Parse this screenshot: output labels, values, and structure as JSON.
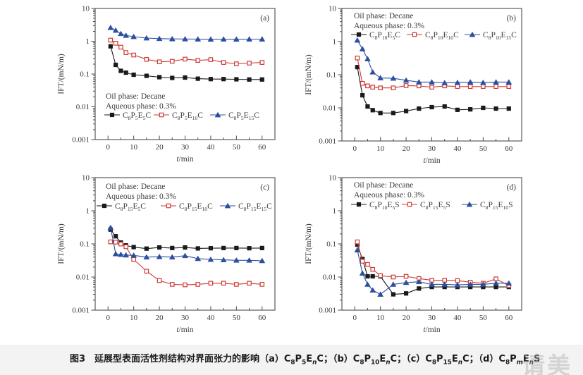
{
  "page": {
    "background": "#ffffff",
    "caption_bar_color": "#f3f3f3"
  },
  "colors": {
    "axis": "#4a4a4a",
    "text": "#3a3a3a",
    "black_series": "#1a1a1a",
    "red_series": "#cd3a35",
    "blue_series": "#2c4f9e"
  },
  "axes_common": {
    "ylabel": "IFT/(mN/m)",
    "xlabel_segments": [
      [
        "t",
        "i"
      ],
      [
        "/min",
        ""
      ]
    ],
    "x_ticks": [
      0,
      10,
      20,
      30,
      40,
      50,
      60
    ],
    "x_minor_ticks": [
      5,
      15,
      25,
      35,
      45,
      55
    ],
    "x_range": [
      -5,
      65
    ],
    "y_scale": "log",
    "y_range": [
      0.001,
      10
    ],
    "y_tick_labels": [
      "10",
      "1",
      "0.1",
      "0.01",
      "0.001"
    ],
    "y_tick_values": [
      10,
      1,
      0.1,
      0.01,
      0.001
    ],
    "note_lines": [
      "Oil phase: Decane",
      "Aqueous phase: 0.3%"
    ]
  },
  "chart_data": [
    {
      "type": "line",
      "panel": "a",
      "panel_letter": "(a)",
      "x": [
        1,
        3,
        5,
        7,
        10,
        15,
        20,
        25,
        30,
        35,
        40,
        45,
        50,
        55,
        60
      ],
      "series": [
        {
          "name": "C8P5E5C",
          "label": [
            [
              "C",
              ""
            ],
            [
              "8",
              "s"
            ],
            [
              "P",
              ""
            ],
            [
              "5",
              "s"
            ],
            [
              "E",
              ""
            ],
            [
              "5",
              "s"
            ],
            [
              "C",
              ""
            ]
          ],
          "color": "#1a1a1a",
          "marker": "square-filled",
          "values": [
            0.7,
            0.19,
            0.125,
            0.11,
            0.095,
            0.088,
            0.08,
            0.076,
            0.078,
            0.072,
            0.07,
            0.07,
            0.069,
            0.068,
            0.068
          ]
        },
        {
          "name": "C8P5E10C",
          "label": [
            [
              "C",
              ""
            ],
            [
              "8",
              "s"
            ],
            [
              "P",
              ""
            ],
            [
              "5",
              "s"
            ],
            [
              "E",
              ""
            ],
            [
              "10",
              "s"
            ],
            [
              "C",
              ""
            ]
          ],
          "color": "#cd3a35",
          "marker": "square-open",
          "values": [
            1.08,
            0.87,
            0.66,
            0.45,
            0.38,
            0.28,
            0.235,
            0.245,
            0.285,
            0.26,
            0.275,
            0.225,
            0.205,
            0.215,
            0.225
          ]
        },
        {
          "name": "C8P5E15C",
          "label": [
            [
              "C",
              ""
            ],
            [
              "8",
              "s"
            ],
            [
              "P",
              ""
            ],
            [
              "5",
              "s"
            ],
            [
              "E",
              ""
            ],
            [
              "15",
              "s"
            ],
            [
              "C",
              ""
            ]
          ],
          "color": "#2c4f9e",
          "marker": "triangle-filled",
          "values": [
            2.6,
            2.15,
            1.7,
            1.5,
            1.38,
            1.25,
            1.2,
            1.18,
            1.17,
            1.16,
            1.15,
            1.16,
            1.15,
            1.16,
            1.16
          ]
        }
      ]
    },
    {
      "type": "line",
      "panel": "b",
      "panel_letter": "(b)",
      "x": [
        1,
        3,
        5,
        7,
        10,
        15,
        20,
        25,
        30,
        35,
        40,
        45,
        50,
        55,
        60
      ],
      "series": [
        {
          "name": "C8P10E5C",
          "label": [
            [
              "C",
              ""
            ],
            [
              "8",
              "s"
            ],
            [
              "P",
              ""
            ],
            [
              "10",
              "s"
            ],
            [
              "E",
              ""
            ],
            [
              "5",
              "s"
            ],
            [
              "C",
              ""
            ]
          ],
          "color": "#1a1a1a",
          "marker": "square-filled",
          "values": [
            0.17,
            0.024,
            0.011,
            0.0085,
            0.007,
            0.007,
            0.008,
            0.0095,
            0.0105,
            0.011,
            0.0087,
            0.009,
            0.01,
            0.0095,
            0.0095
          ]
        },
        {
          "name": "C8P10E10C",
          "label": [
            [
              "C",
              ""
            ],
            [
              "8",
              "s"
            ],
            [
              "P",
              ""
            ],
            [
              "10",
              "s"
            ],
            [
              "E",
              ""
            ],
            [
              "10",
              "s"
            ],
            [
              "C",
              ""
            ]
          ],
          "color": "#cd3a35",
          "marker": "square-open",
          "values": [
            0.32,
            0.055,
            0.046,
            0.042,
            0.04,
            0.04,
            0.047,
            0.046,
            0.042,
            0.046,
            0.044,
            0.044,
            0.044,
            0.044,
            0.044
          ]
        },
        {
          "name": "C8P10E15C",
          "label": [
            [
              "C",
              ""
            ],
            [
              "8",
              "s"
            ],
            [
              "P",
              ""
            ],
            [
              "10",
              "s"
            ],
            [
              "E",
              ""
            ],
            [
              "15",
              "s"
            ],
            [
              "C",
              ""
            ]
          ],
          "color": "#2c4f9e",
          "marker": "triangle-filled",
          "values": [
            1.1,
            0.6,
            0.3,
            0.12,
            0.08,
            0.078,
            0.068,
            0.06,
            0.06,
            0.057,
            0.058,
            0.06,
            0.058,
            0.06,
            0.06
          ]
        }
      ]
    },
    {
      "type": "line",
      "panel": "c",
      "panel_letter": "(c)",
      "x": [
        1,
        3,
        5,
        7,
        10,
        15,
        20,
        25,
        30,
        35,
        40,
        45,
        50,
        55,
        60
      ],
      "series": [
        {
          "name": "C8P15E5C",
          "label": [
            [
              "C",
              ""
            ],
            [
              "8",
              "s"
            ],
            [
              "P",
              ""
            ],
            [
              "15",
              "s"
            ],
            [
              "E",
              ""
            ],
            [
              "5",
              "s"
            ],
            [
              "C",
              ""
            ]
          ],
          "color": "#1a1a1a",
          "marker": "square-filled",
          "values": [
            0.27,
            0.17,
            0.11,
            0.09,
            0.08,
            0.072,
            0.078,
            0.075,
            0.078,
            0.073,
            0.074,
            0.075,
            0.075,
            0.074,
            0.075
          ]
        },
        {
          "name": "C8P15E10C",
          "label": [
            [
              "C",
              ""
            ],
            [
              "8",
              "s"
            ],
            [
              "P",
              ""
            ],
            [
              "15",
              "s"
            ],
            [
              "E",
              ""
            ],
            [
              "10",
              "s"
            ],
            [
              "C",
              ""
            ]
          ],
          "color": "#cd3a35",
          "marker": "square-open",
          "values": [
            0.115,
            0.113,
            0.099,
            0.082,
            0.034,
            0.015,
            0.0078,
            0.006,
            0.0058,
            0.006,
            0.0065,
            0.0065,
            0.006,
            0.0065,
            0.006
          ]
        },
        {
          "name": "C8P15E15C",
          "label": [
            [
              "C",
              ""
            ],
            [
              "8",
              "s"
            ],
            [
              "P",
              ""
            ],
            [
              "15",
              "s"
            ],
            [
              "E",
              ""
            ],
            [
              "15",
              "s"
            ],
            [
              "C",
              ""
            ]
          ],
          "color": "#2c4f9e",
          "marker": "triangle-filled",
          "values": [
            0.31,
            0.05,
            0.048,
            0.046,
            0.045,
            0.04,
            0.041,
            0.04,
            0.044,
            0.036,
            0.034,
            0.033,
            0.032,
            0.032,
            0.031
          ]
        }
      ]
    },
    {
      "type": "line",
      "panel": "d",
      "panel_letter": "(d)",
      "x": [
        1,
        3,
        5,
        7,
        10,
        15,
        20,
        25,
        30,
        35,
        40,
        45,
        50,
        55,
        60
      ],
      "series": [
        {
          "name": "C8P10E5S",
          "label": [
            [
              "C",
              ""
            ],
            [
              "8",
              "s"
            ],
            [
              "P",
              ""
            ],
            [
              "10",
              "s"
            ],
            [
              "E",
              ""
            ],
            [
              "5",
              "s"
            ],
            [
              "S",
              ""
            ]
          ],
          "color": "#1a1a1a",
          "marker": "square-filled",
          "values": [
            0.095,
            0.035,
            0.0105,
            0.0105,
            0.0105,
            0.003,
            0.0032,
            0.0045,
            0.005,
            0.005,
            0.005,
            0.005,
            0.005,
            0.005,
            0.005
          ]
        },
        {
          "name": "C8P15E5S",
          "label": [
            [
              "C",
              ""
            ],
            [
              "8",
              "s"
            ],
            [
              "P",
              ""
            ],
            [
              "15",
              "s"
            ],
            [
              "E",
              ""
            ],
            [
              "5",
              "s"
            ],
            [
              "S",
              ""
            ]
          ],
          "color": "#cd3a35",
          "marker": "square-open",
          "values": [
            0.115,
            0.03,
            0.024,
            0.017,
            0.011,
            0.01,
            0.0105,
            0.009,
            0.008,
            0.008,
            0.0078,
            0.007,
            0.0065,
            0.0088,
            0.0055
          ]
        },
        {
          "name": "C8P15E10S",
          "label": [
            [
              "C",
              ""
            ],
            [
              "8",
              "s"
            ],
            [
              "P",
              ""
            ],
            [
              "15",
              "s"
            ],
            [
              "E",
              ""
            ],
            [
              "10",
              "s"
            ],
            [
              "S",
              ""
            ]
          ],
          "color": "#2c4f9e",
          "marker": "triangle-filled",
          "values": [
            0.065,
            0.013,
            0.006,
            0.004,
            0.003,
            0.006,
            0.0068,
            0.0072,
            0.006,
            0.006,
            0.0058,
            0.006,
            0.006,
            0.0065,
            0.0065
          ]
        }
      ]
    }
  ],
  "caption": {
    "label": "图3",
    "title": "延展型表面活性剂结构对界面张力的影响",
    "parts": [
      {
        "prefix": "（a）",
        "formula": [
          [
            "C",
            ""
          ],
          [
            "8",
            "s"
          ],
          [
            "P",
            ""
          ],
          [
            "5",
            "s"
          ],
          [
            "E",
            ""
          ],
          [
            "n",
            "si"
          ],
          [
            "C",
            ""
          ]
        ],
        "suffix": "；"
      },
      {
        "prefix": "（b）",
        "formula": [
          [
            "C",
            ""
          ],
          [
            "8",
            "s"
          ],
          [
            "P",
            ""
          ],
          [
            "10",
            "s"
          ],
          [
            "E",
            ""
          ],
          [
            "n",
            "si"
          ],
          [
            "C",
            ""
          ]
        ],
        "suffix": "；"
      },
      {
        "prefix": "（c）",
        "formula": [
          [
            "C",
            ""
          ],
          [
            "8",
            "s"
          ],
          [
            "P",
            ""
          ],
          [
            "15",
            "s"
          ],
          [
            "E",
            ""
          ],
          [
            "n",
            "si"
          ],
          [
            "C",
            ""
          ]
        ],
        "suffix": "；"
      },
      {
        "prefix": "（d）",
        "formula": [
          [
            "C",
            ""
          ],
          [
            "8",
            "s"
          ],
          [
            "P",
            ""
          ],
          [
            "m",
            "si"
          ],
          [
            "E",
            ""
          ],
          [
            "n",
            "si"
          ],
          [
            "S",
            ""
          ]
        ],
        "suffix": ""
      }
    ]
  },
  "watermark": "请美"
}
